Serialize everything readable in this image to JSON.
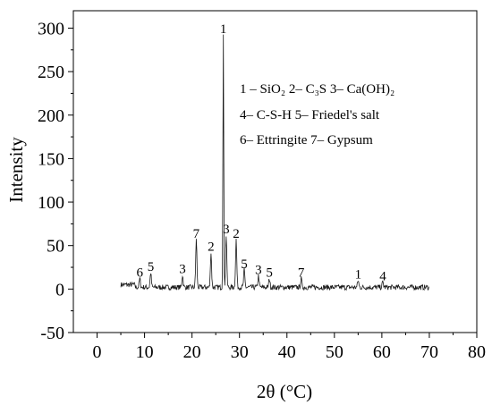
{
  "chart_data": {
    "type": "line",
    "xlabel": "2θ (°C)",
    "ylabel": "Intensity",
    "xlim": [
      -5,
      80
    ],
    "ylim": [
      -50,
      320
    ],
    "x_ticks": [
      "0",
      "10",
      "20",
      "30",
      "40",
      "50",
      "60",
      "70",
      "80"
    ],
    "y_ticks": [
      "-50",
      "0",
      "50",
      "100",
      "150",
      "200",
      "250",
      "300"
    ],
    "grid": false,
    "series": [
      {
        "peaks": [
          {
            "x": 9.0,
            "y": 10,
            "label": "6"
          },
          {
            "x": 11.3,
            "y": 17,
            "label": "5"
          },
          {
            "x": 18.0,
            "y": 14,
            "label": "3"
          },
          {
            "x": 20.9,
            "y": 55,
            "label": "7"
          },
          {
            "x": 24.0,
            "y": 40,
            "label": "2"
          },
          {
            "x": 26.6,
            "y": 290,
            "label": "1"
          },
          {
            "x": 27.2,
            "y": 60,
            "label": "3"
          },
          {
            "x": 29.3,
            "y": 55,
            "label": "2"
          },
          {
            "x": 31.0,
            "y": 20,
            "label": "5"
          },
          {
            "x": 34.0,
            "y": 13,
            "label": "3"
          },
          {
            "x": 36.3,
            "y": 10,
            "label": "5"
          },
          {
            "x": 43.0,
            "y": 10,
            "label": "7"
          },
          {
            "x": 55.0,
            "y": 8,
            "label": "1"
          },
          {
            "x": 60.2,
            "y": 6,
            "label": "4"
          }
        ]
      }
    ],
    "legend": {
      "position": "top-right",
      "lines": [
        "1 – SiO₂    2– C₃S    3– Ca(OH)₂",
        "4– C-S-H  5– Friedel's salt",
        "6– Ettringite      7– Gypsum"
      ]
    }
  }
}
